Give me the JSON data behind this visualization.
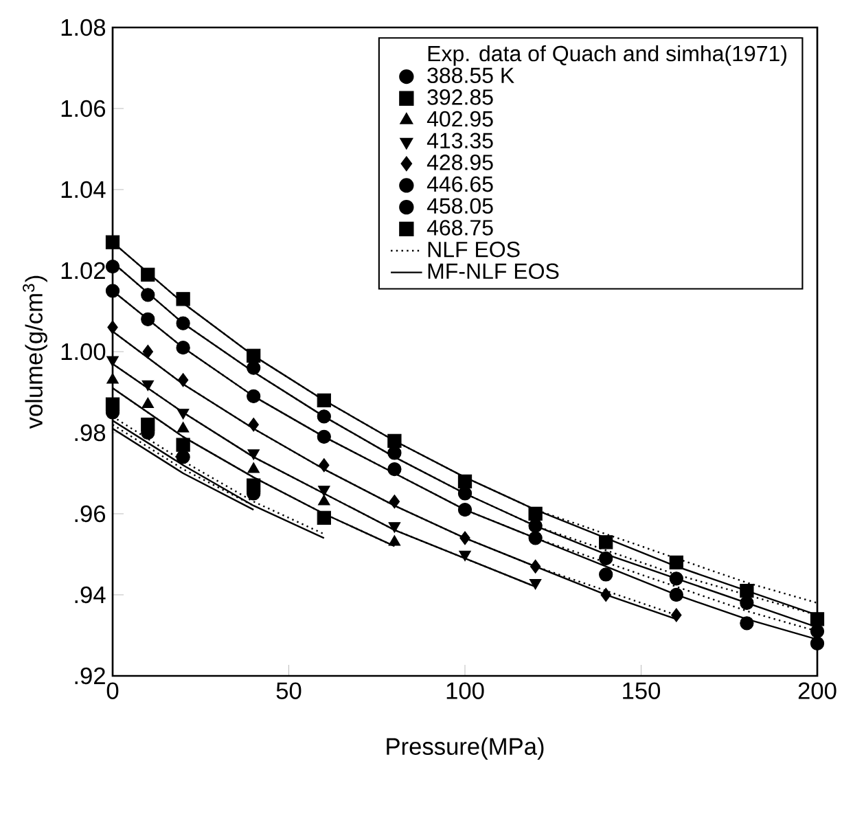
{
  "chart_data": {
    "type": "scatter",
    "xlabel": "Pressure(MPa)",
    "ylabel": "volume(g/cm$^{3}$)",
    "legend_title": "Exp. data of Quach and simha(1971)",
    "legend": "top right",
    "grid": false,
    "xlim": [
      0,
      200
    ],
    "ylim": [
      0.92,
      1.08
    ],
    "xticks": [
      0,
      50,
      100,
      150,
      200
    ],
    "yticks": [
      {
        "value": 0.92,
        "label": ".92"
      },
      {
        "value": 0.94,
        "label": ".94"
      },
      {
        "value": 0.96,
        "label": ".96"
      },
      {
        "value": 0.98,
        "label": ".98"
      },
      {
        "value": 1.0,
        "label": "1.00"
      },
      1.02,
      1.04,
      1.06,
      1.08
    ],
    "series": [
      {
        "name": "388.55 K",
        "marker": "circle",
        "color": "#000000",
        "x": [
          0,
          10,
          20,
          40
        ],
        "values": [
          0.985,
          0.98,
          0.974,
          0.965
        ]
      },
      {
        "name": "392.85",
        "marker": "square",
        "color": "#000000",
        "x": [
          0,
          10,
          20,
          40,
          60
        ],
        "values": [
          0.987,
          0.982,
          0.977,
          0.967,
          0.959
        ]
      },
      {
        "name": "402.95",
        "marker": "triangle",
        "color": "#000000",
        "x": [
          0,
          10,
          20,
          40,
          60,
          80
        ],
        "values": [
          0.993,
          0.987,
          0.981,
          0.971,
          0.963,
          0.953
        ]
      },
      {
        "name": "413.35",
        "marker": "triangle-down",
        "color": "#000000",
        "x": [
          0,
          10,
          20,
          40,
          60,
          80,
          100,
          120
        ],
        "values": [
          0.998,
          0.992,
          0.985,
          0.975,
          0.966,
          0.957,
          0.95,
          0.943
        ]
      },
      {
        "name": "428.95",
        "marker": "diamond",
        "color": "#000000",
        "x": [
          0,
          10,
          20,
          40,
          60,
          80,
          100,
          120,
          140,
          160
        ],
        "values": [
          1.006,
          1.0,
          0.993,
          0.982,
          0.972,
          0.963,
          0.954,
          0.947,
          0.94,
          0.935
        ]
      },
      {
        "name": "446.65",
        "marker": "circle",
        "color": "#000000",
        "x": [
          0,
          10,
          20,
          40,
          60,
          80,
          100,
          120,
          140,
          160,
          180,
          200
        ],
        "values": [
          1.015,
          1.008,
          1.001,
          0.989,
          0.979,
          0.971,
          0.961,
          0.954,
          0.945,
          0.94,
          0.933,
          0.928
        ]
      },
      {
        "name": "458.05",
        "marker": "circle",
        "color": "#000000",
        "x": [
          0,
          10,
          20,
          40,
          60,
          80,
          100,
          120,
          140,
          160,
          180,
          200
        ],
        "values": [
          1.021,
          1.014,
          1.007,
          0.996,
          0.984,
          0.975,
          0.965,
          0.957,
          0.949,
          0.944,
          0.938,
          0.931
        ]
      },
      {
        "name": "468.75",
        "marker": "square",
        "color": "#000000",
        "x": [
          0,
          10,
          20,
          40,
          60,
          80,
          100,
          120,
          140,
          160,
          180,
          200
        ],
        "values": [
          1.027,
          1.019,
          1.013,
          0.999,
          0.988,
          0.978,
          0.968,
          0.96,
          0.953,
          0.948,
          0.941,
          0.934
        ]
      },
      {
        "name": "NLF EOS",
        "type": "line",
        "line_style": "dotted",
        "marker": "none",
        "color": "#000000",
        "x": [
          0,
          20,
          40,
          60,
          80,
          100,
          120,
          140,
          160,
          180,
          200
        ],
        "values": [
          1.027,
          1.012,
          0.999,
          0.988,
          0.978,
          0.969,
          0.961,
          0.955,
          0.949,
          0.943,
          0.938
        ]
      },
      {
        "type": "line",
        "line_style": "dotted",
        "marker": "none",
        "color": "#000000",
        "x": [
          0,
          20,
          40,
          60,
          80,
          100,
          120,
          140,
          160,
          180,
          200
        ],
        "values": [
          1.022,
          1.007,
          0.995,
          0.984,
          0.974,
          0.965,
          0.957,
          0.951,
          0.945,
          0.94,
          0.935
        ]
      },
      {
        "type": "line",
        "line_style": "dotted",
        "marker": "none",
        "color": "#000000",
        "x": [
          0,
          20,
          40,
          60,
          80,
          100,
          120,
          140,
          160,
          180,
          200
        ],
        "values": [
          1.015,
          1.001,
          0.989,
          0.979,
          0.97,
          0.961,
          0.954,
          0.948,
          0.942,
          0.936,
          0.931
        ]
      },
      {
        "type": "line",
        "line_style": "dotted",
        "marker": "none",
        "color": "#000000",
        "x": [
          0,
          20,
          40,
          60,
          80,
          100,
          120,
          140,
          160
        ],
        "values": [
          1.005,
          0.992,
          0.981,
          0.971,
          0.962,
          0.954,
          0.947,
          0.941,
          0.935
        ]
      },
      {
        "type": "line",
        "line_style": "dotted",
        "marker": "none",
        "color": "#000000",
        "x": [
          0,
          20,
          40,
          60,
          80,
          100,
          120
        ],
        "values": [
          0.997,
          0.985,
          0.974,
          0.965,
          0.956,
          0.949,
          0.942
        ]
      },
      {
        "type": "line",
        "line_style": "dotted",
        "marker": "none",
        "color": "#000000",
        "x": [
          0,
          20,
          40,
          60,
          80
        ],
        "values": [
          0.991,
          0.979,
          0.969,
          0.96,
          0.952
        ]
      },
      {
        "type": "line",
        "line_style": "dotted",
        "marker": "none",
        "color": "#000000",
        "x": [
          0,
          20,
          40,
          60
        ],
        "values": [
          0.984,
          0.973,
          0.963,
          0.955
        ]
      },
      {
        "type": "line",
        "line_style": "dotted",
        "marker": "none",
        "color": "#000000",
        "x": [
          0,
          20,
          40
        ],
        "values": [
          0.982,
          0.971,
          0.962
        ]
      },
      {
        "name": "MF-NLF EOS",
        "type": "line",
        "line_style": "solid",
        "marker": "none",
        "color": "#000000",
        "x": [
          0,
          20,
          40,
          60,
          80,
          100,
          120,
          140,
          160,
          180,
          200
        ],
        "values": [
          1.027,
          1.012,
          0.999,
          0.988,
          0.978,
          0.969,
          0.961,
          0.954,
          0.947,
          0.941,
          0.935
        ]
      },
      {
        "type": "line",
        "line_style": "solid",
        "marker": "none",
        "color": "#000000",
        "x": [
          0,
          20,
          40,
          60,
          80,
          100,
          120,
          140,
          160,
          180,
          200
        ],
        "values": [
          1.022,
          1.007,
          0.995,
          0.984,
          0.974,
          0.965,
          0.957,
          0.95,
          0.944,
          0.938,
          0.932
        ]
      },
      {
        "type": "line",
        "line_style": "solid",
        "marker": "none",
        "color": "#000000",
        "x": [
          0,
          20,
          40,
          60,
          80,
          100,
          120,
          140,
          160,
          180,
          200
        ],
        "values": [
          1.015,
          1.001,
          0.989,
          0.979,
          0.97,
          0.961,
          0.954,
          0.947,
          0.94,
          0.934,
          0.929
        ]
      },
      {
        "type": "line",
        "line_style": "solid",
        "marker": "none",
        "color": "#000000",
        "x": [
          0,
          20,
          40,
          60,
          80,
          100,
          120,
          140,
          160
        ],
        "values": [
          1.005,
          0.992,
          0.981,
          0.971,
          0.962,
          0.954,
          0.947,
          0.94,
          0.934
        ]
      },
      {
        "type": "line",
        "line_style": "solid",
        "marker": "none",
        "color": "#000000",
        "x": [
          0,
          20,
          40,
          60,
          80,
          100,
          120
        ],
        "values": [
          0.997,
          0.985,
          0.974,
          0.965,
          0.956,
          0.949,
          0.942
        ]
      },
      {
        "type": "line",
        "line_style": "solid",
        "marker": "none",
        "color": "#000000",
        "x": [
          0,
          20,
          40,
          60,
          80
        ],
        "values": [
          0.991,
          0.979,
          0.969,
          0.96,
          0.952
        ]
      },
      {
        "type": "line",
        "line_style": "solid",
        "marker": "none",
        "color": "#000000",
        "x": [
          0,
          20,
          40,
          60
        ],
        "values": [
          0.983,
          0.972,
          0.962,
          0.954
        ]
      },
      {
        "type": "line",
        "line_style": "solid",
        "marker": "none",
        "color": "#000000",
        "x": [
          0,
          20,
          40
        ],
        "values": [
          0.981,
          0.97,
          0.961
        ]
      }
    ]
  }
}
